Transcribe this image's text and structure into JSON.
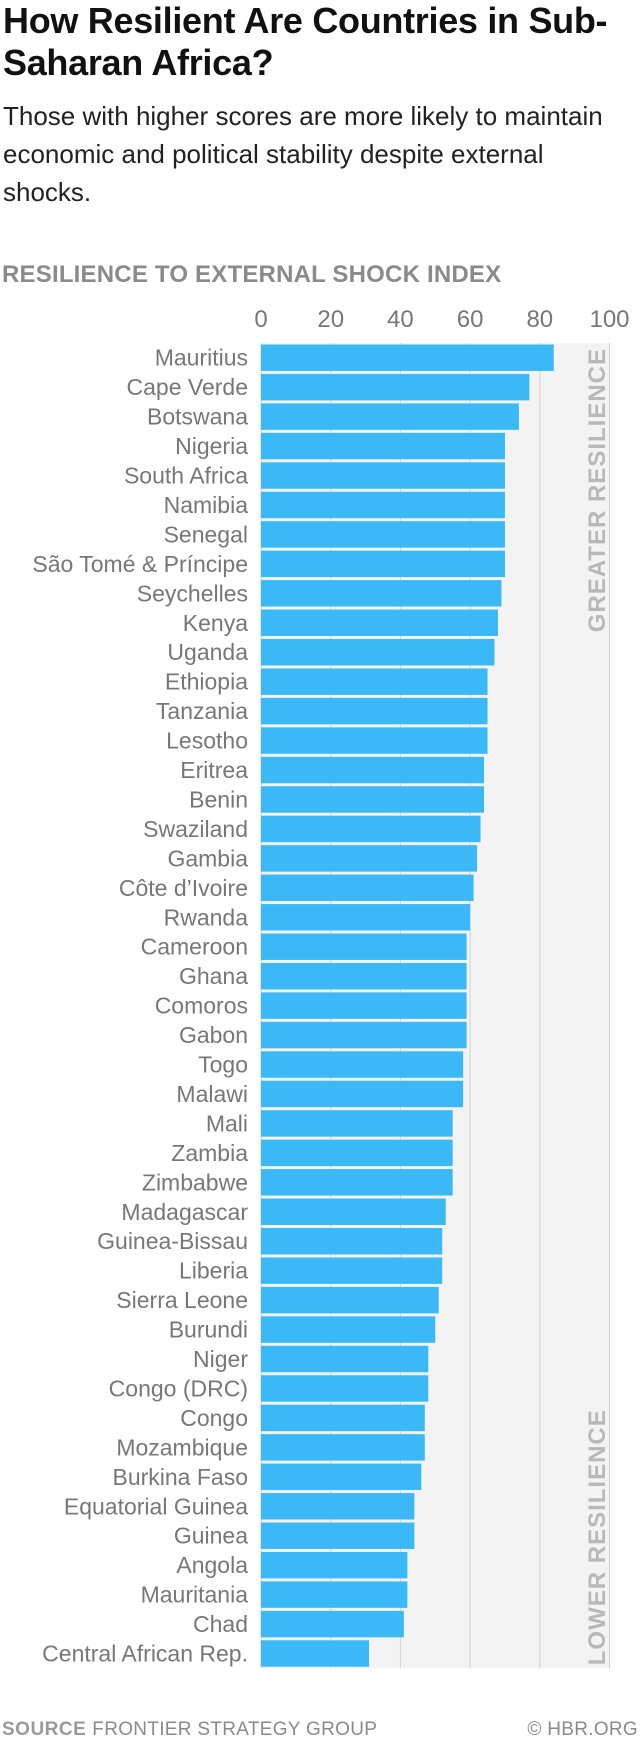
{
  "title": "How Resilient Are Countries in Sub-Saharan Africa?",
  "subtitle": "Those with higher scores are more likely to maintain economic and political stability despite external shocks.",
  "footer": {
    "source_label": "SOURCE",
    "source_value": "FRONTIER STRATEGY GROUP",
    "copyright": "© HBR.ORG"
  },
  "colors": {
    "bar": "#3bb9f6",
    "band": "#f3f3f3",
    "grid": "#d2d2d2",
    "axis_text": "#777777"
  },
  "chart_data": {
    "type": "bar",
    "orientation": "horizontal",
    "xlabel": "RESILIENCE TO EXTERNAL SHOCK INDEX",
    "xlim": [
      0,
      100
    ],
    "xticks": [
      0,
      20,
      40,
      60,
      80,
      100
    ],
    "grid": true,
    "band_labels": {
      "top": "GREATER RESILIENCE",
      "bottom": "LOWER RESILIENCE"
    },
    "categories": [
      "Mauritius",
      "Cape Verde",
      "Botswana",
      "Nigeria",
      "South Africa",
      "Namibia",
      "Senegal",
      "São Tomé & Príncipe",
      "Seychelles",
      "Kenya",
      "Uganda",
      "Ethiopia",
      "Tanzania",
      "Lesotho",
      "Eritrea",
      "Benin",
      "Swaziland",
      "Gambia",
      "Côte d’Ivoire",
      "Rwanda",
      "Cameroon",
      "Ghana",
      "Comoros",
      "Gabon",
      "Togo",
      "Malawi",
      "Mali",
      "Zambia",
      "Zimbabwe",
      "Madagascar",
      "Guinea-Bissau",
      "Liberia",
      "Sierra Leone",
      "Burundi",
      "Niger",
      "Congo (DRC)",
      "Congo",
      "Mozambique",
      "Burkina Faso",
      "Equatorial Guinea",
      "Guinea",
      "Angola",
      "Mauritania",
      "Chad",
      "Central African Rep."
    ],
    "values": [
      84,
      77,
      74,
      70,
      70,
      70,
      70,
      70,
      69,
      68,
      67,
      65,
      65,
      65,
      64,
      64,
      63,
      62,
      61,
      60,
      59,
      59,
      59,
      59,
      58,
      58,
      55,
      55,
      55,
      53,
      52,
      52,
      51,
      50,
      48,
      48,
      47,
      47,
      46,
      44,
      44,
      42,
      42,
      41,
      31
    ]
  }
}
